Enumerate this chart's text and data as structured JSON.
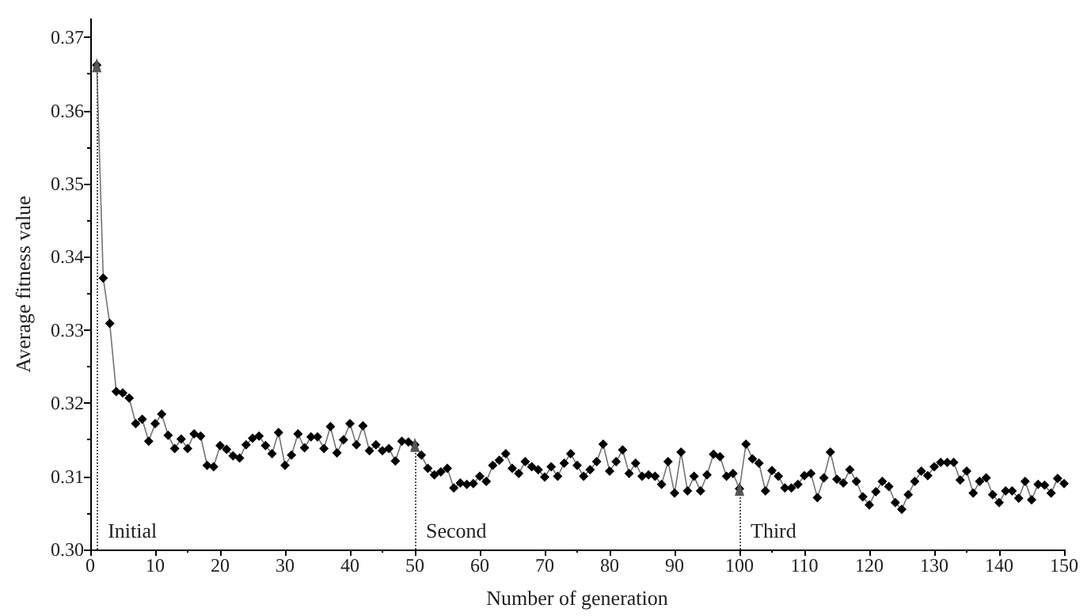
{
  "chart_data": {
    "type": "line",
    "xlabel": "Number of generation",
    "ylabel": "Average fitness value",
    "x": [
      1,
      2,
      3,
      4,
      5,
      6,
      7,
      8,
      9,
      10,
      11,
      12,
      13,
      14,
      15,
      16,
      17,
      18,
      19,
      20,
      21,
      22,
      23,
      24,
      25,
      26,
      27,
      28,
      29,
      30,
      31,
      32,
      33,
      34,
      35,
      36,
      37,
      38,
      39,
      40,
      41,
      42,
      43,
      44,
      45,
      46,
      47,
      48,
      49,
      50,
      51,
      52,
      53,
      54,
      55,
      56,
      57,
      58,
      59,
      60,
      61,
      62,
      63,
      64,
      65,
      66,
      67,
      68,
      69,
      70,
      71,
      72,
      73,
      74,
      75,
      76,
      77,
      78,
      79,
      80,
      81,
      82,
      83,
      84,
      85,
      86,
      87,
      88,
      89,
      90,
      91,
      92,
      93,
      94,
      95,
      96,
      97,
      98,
      99,
      100,
      101,
      102,
      103,
      104,
      105,
      106,
      107,
      108,
      109,
      110,
      111,
      112,
      113,
      114,
      115,
      116,
      117,
      118,
      119,
      120,
      121,
      122,
      123,
      124,
      125,
      126,
      127,
      128,
      129,
      130,
      131,
      132,
      133,
      134,
      135,
      136,
      137,
      138,
      139,
      140,
      141,
      142,
      143,
      144,
      145,
      146,
      147,
      148,
      149,
      150
    ],
    "series": [
      {
        "color": "#000000",
        "values": [
          0.3662,
          0.3371,
          0.3309,
          0.3216,
          0.3214,
          0.3207,
          0.3172,
          0.3178,
          0.3148,
          0.3172,
          0.3185,
          0.3156,
          0.3138,
          0.3151,
          0.3138,
          0.3158,
          0.3155,
          0.3115,
          0.3113,
          0.3142,
          0.3137,
          0.3128,
          0.3125,
          0.3143,
          0.3152,
          0.3155,
          0.3142,
          0.3131,
          0.316,
          0.3115,
          0.3129,
          0.3158,
          0.3139,
          0.3154,
          0.3154,
          0.3138,
          0.3168,
          0.3132,
          0.315,
          0.3172,
          0.3143,
          0.3169,
          0.3135,
          0.3143,
          0.3135,
          0.3138,
          0.3121,
          0.3148,
          0.3147,
          0.3143,
          0.3129,
          0.3111,
          0.3102,
          0.3106,
          0.3111,
          0.3084,
          0.3091,
          0.3089,
          0.309,
          0.31,
          0.3093,
          0.3115,
          0.3122,
          0.3131,
          0.3111,
          0.3104,
          0.312,
          0.3113,
          0.3109,
          0.3099,
          0.3113,
          0.31,
          0.3118,
          0.3131,
          0.3115,
          0.31,
          0.3109,
          0.312,
          0.3144,
          0.3107,
          0.312,
          0.3136,
          0.3104,
          0.3118,
          0.31,
          0.3102,
          0.31,
          0.3089,
          0.312,
          0.3077,
          0.3133,
          0.308,
          0.31,
          0.308,
          0.3102,
          0.313,
          0.3127,
          0.31,
          0.3104,
          0.3083,
          0.3144,
          0.3124,
          0.3118,
          0.308,
          0.3108,
          0.31,
          0.3084,
          0.3084,
          0.3089,
          0.3101,
          0.3104,
          0.3071,
          0.3098,
          0.3133,
          0.3096,
          0.3091,
          0.3109,
          0.3093,
          0.3072,
          0.3061,
          0.3079,
          0.3093,
          0.3086,
          0.3064,
          0.3055,
          0.3075,
          0.3093,
          0.3107,
          0.3101,
          0.3113,
          0.3119,
          0.3119,
          0.3119,
          0.3095,
          0.3107,
          0.3077,
          0.3093,
          0.3098,
          0.3075,
          0.3064,
          0.308,
          0.308,
          0.307,
          0.3093,
          0.3068,
          0.3089,
          0.3088,
          0.3077,
          0.3097,
          0.309
        ]
      }
    ],
    "xlim": [
      0,
      150
    ],
    "xticks": [
      0,
      10,
      20,
      30,
      40,
      50,
      60,
      70,
      80,
      90,
      100,
      110,
      120,
      130,
      140,
      150
    ],
    "ylim": [
      0.3,
      0.3725
    ],
    "yticks": [
      {
        "value": 0.3,
        "label": "0.30"
      },
      {
        "value": 0.31,
        "label": "0.31"
      },
      {
        "value": 0.32,
        "label": "0.32"
      },
      {
        "value": 0.33,
        "label": "0.33"
      },
      {
        "value": 0.34,
        "label": "0.34"
      },
      {
        "value": 0.35,
        "label": "0.35"
      },
      {
        "value": 0.36,
        "label": "0.36"
      },
      {
        "value": 0.37,
        "label": "0.37"
      }
    ],
    "ref_lines": [
      {
        "axis": "x",
        "value": 1,
        "label": "Initial",
        "line_style": "dotted"
      },
      {
        "axis": "x",
        "value": 50,
        "label": "Second",
        "line_style": "dotted"
      },
      {
        "axis": "x",
        "value": 100,
        "label": "Third",
        "line_style": "dotted"
      }
    ],
    "marker": "diamond"
  }
}
